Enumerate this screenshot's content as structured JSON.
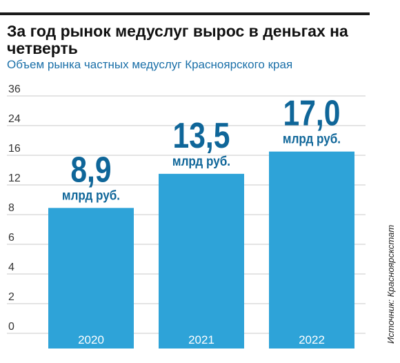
{
  "header": {
    "title": "За год рынок медуслуг вырос в деньгах на четверть",
    "subtitle": "Объем рынка частных медуслуг Красноярского края",
    "source": "Источник: Красноярскстат"
  },
  "chart_data": {
    "type": "bar",
    "categories": [
      "2020",
      "2021",
      "2022"
    ],
    "values": [
      8.9,
      13.5,
      17.0
    ],
    "value_labels": [
      "8,9",
      "13,5",
      "17,0"
    ],
    "unit_label": "млрд руб.",
    "y_ticks": [
      "0",
      "2",
      "4",
      "6",
      "8",
      "12",
      "16",
      "24",
      "36"
    ],
    "title": "За год рынок медуслуг вырос в деньгах на четверть",
    "subtitle": "Объем рынка частных медуслуг Красноярского края",
    "grid": true,
    "colors": {
      "bar": "#2ea3d8",
      "value": "#0f6699",
      "grid": "#c8c8c8",
      "category_text": "#ffffff"
    }
  }
}
